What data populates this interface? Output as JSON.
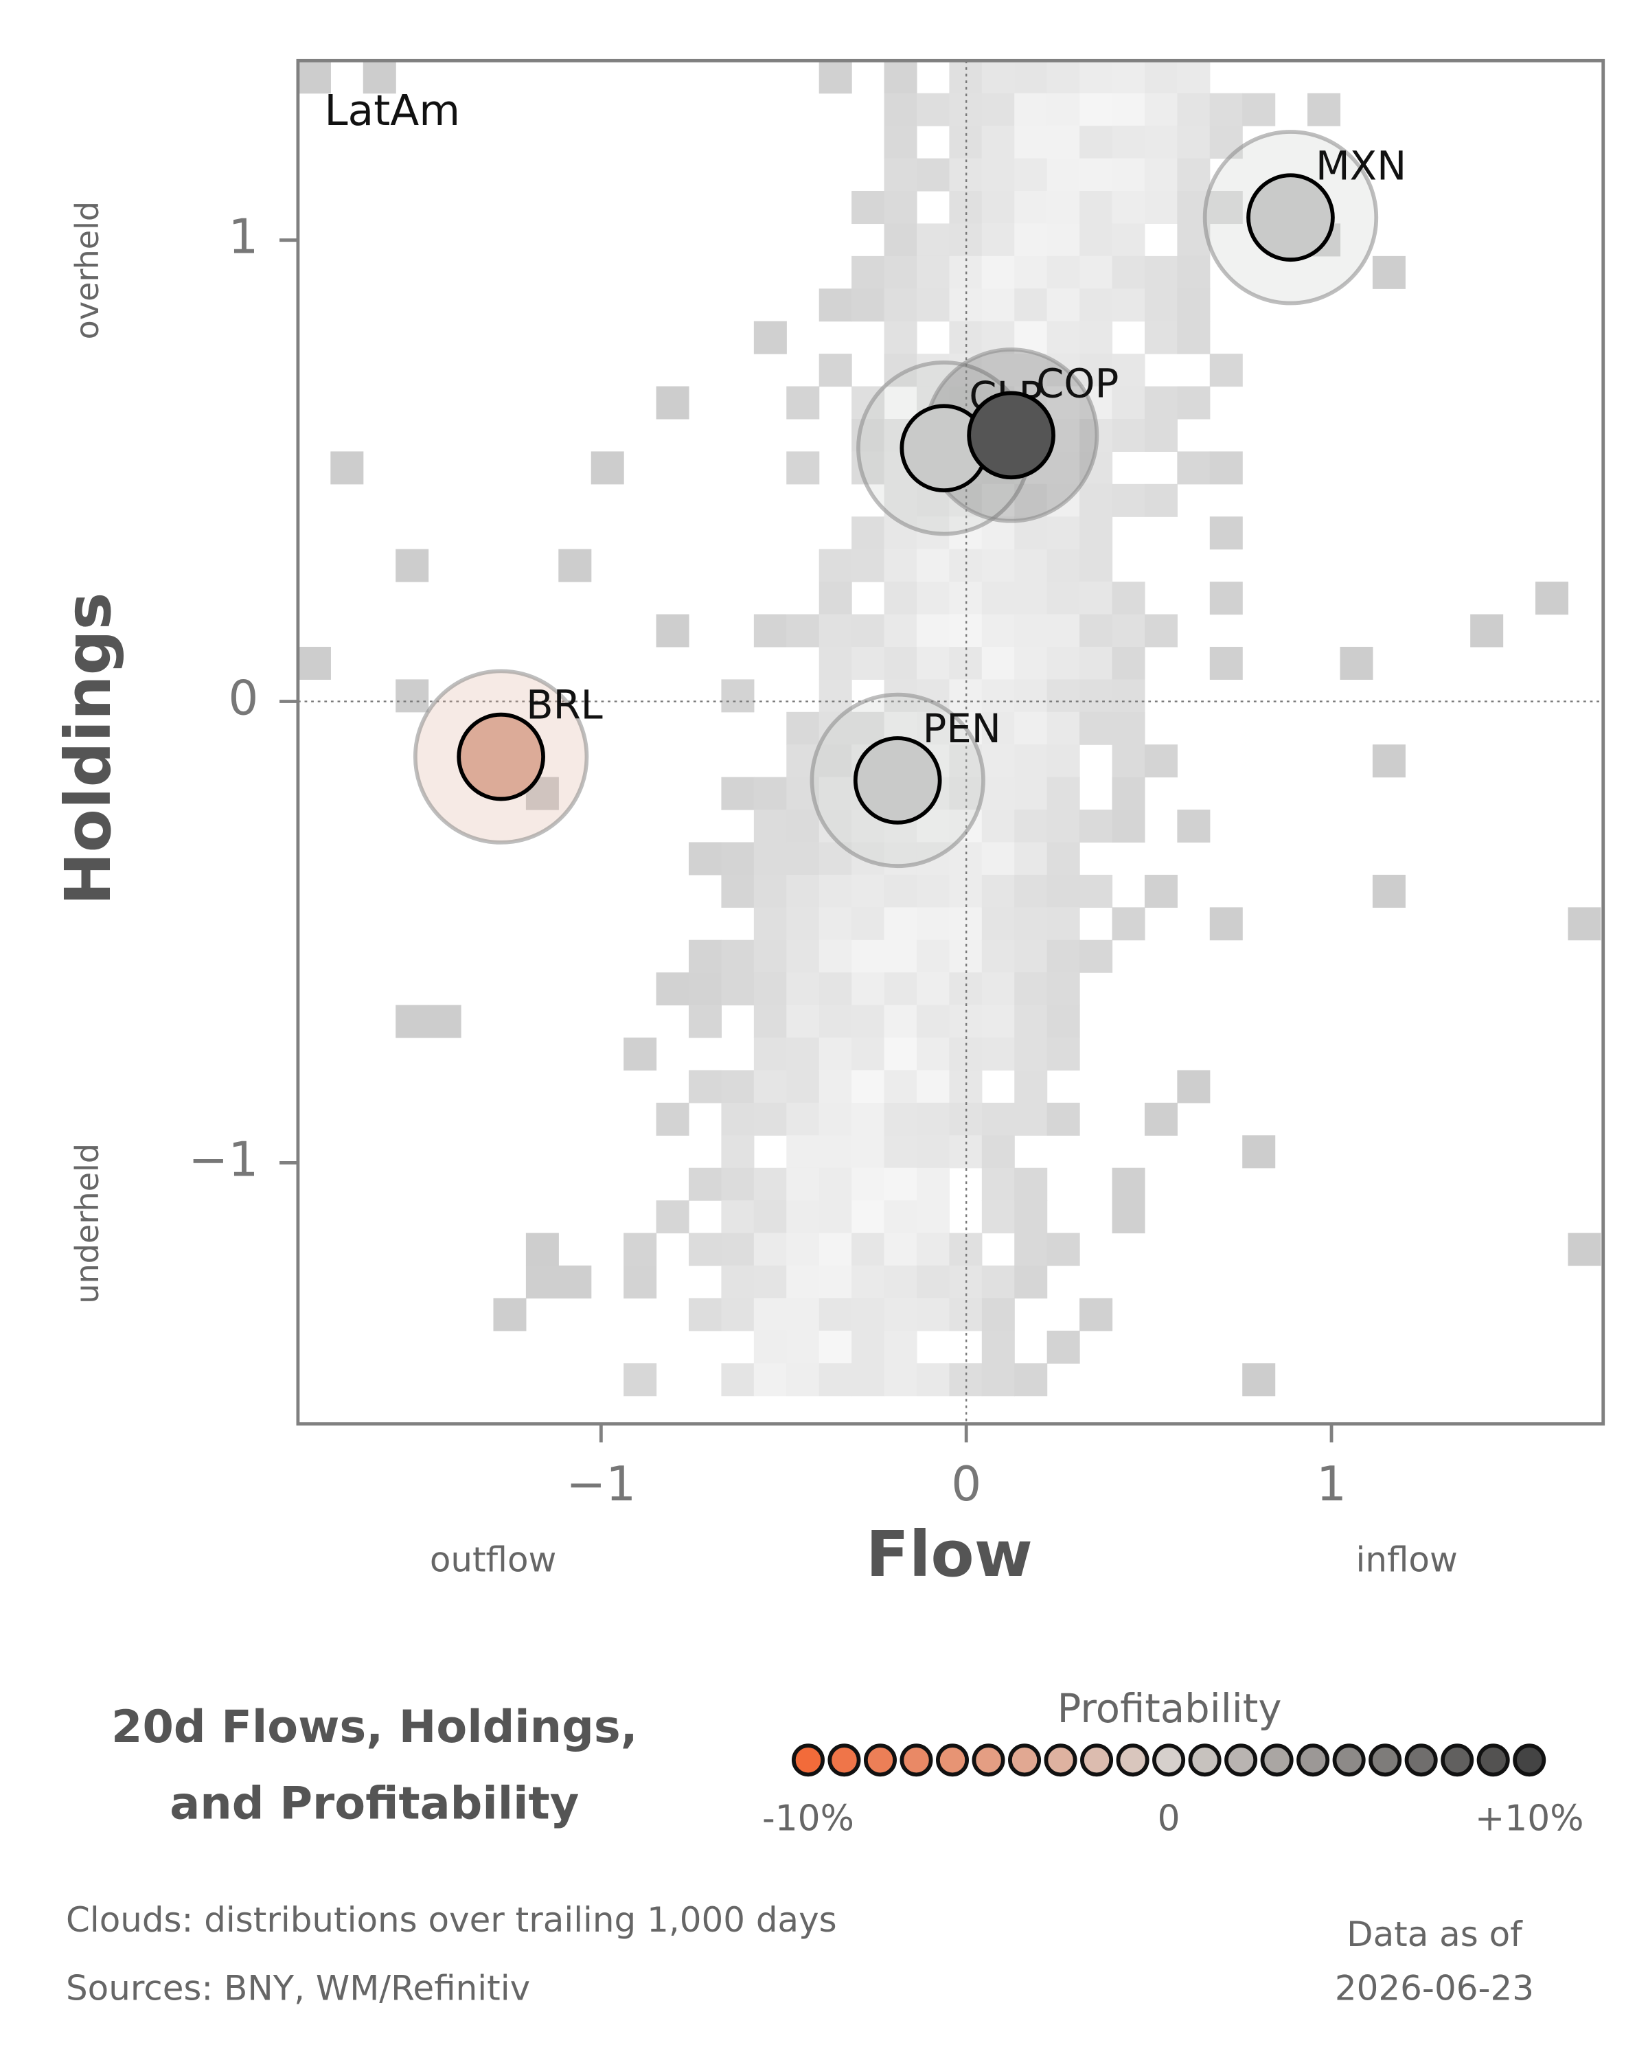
{
  "chart_data": {
    "type": "scatter",
    "panel_label": "LatAm",
    "title_lines": [
      "20d Flows, Holdings,",
      "and Profitability"
    ],
    "xlabel": "Flow",
    "ylabel": "Holdings",
    "x_low_label": "outflow",
    "x_high_label": "inflow",
    "y_high_label": "overheld",
    "y_low_label": "underheld",
    "xlim": [
      -1.83,
      1.744
    ],
    "ylim": [
      -1.566,
      1.389
    ],
    "xticks": [
      {
        "value": -1,
        "label": "−1"
      },
      0,
      1
    ],
    "yticks": [
      {
        "value": -1,
        "label": "−1"
      },
      0,
      1
    ],
    "series": [
      {
        "name": "MXN",
        "color": "#c9cac9",
        "x": [
          0.888
        ],
        "values": [
          1.049
        ]
      },
      {
        "name": "CLP",
        "color": "#c9cac9",
        "x": [
          -0.061
        ],
        "values": [
          0.549
        ]
      },
      {
        "name": "COP",
        "color": "#555555",
        "x": [
          0.123
        ],
        "values": [
          0.577
        ]
      },
      {
        "name": "BRL",
        "color": "#dcab98",
        "x": [
          -1.274
        ],
        "values": [
          -0.12
        ]
      },
      {
        "name": "PEN",
        "color": "#c9cac9",
        "x": [
          -0.188
        ],
        "values": [
          -0.171
        ]
      }
    ],
    "colorbar": {
      "title": "Profitability",
      "range": [
        -10,
        10
      ],
      "ticks": [
        {
          "value": -10,
          "label": "-10%"
        },
        0,
        {
          "value": 10,
          "label": "+10%"
        }
      ],
      "colors": [
        "#f26b3a",
        "#ef7549",
        "#ec7f57",
        "#e98966",
        "#e79474",
        "#e49e83",
        "#e1a892",
        "#deb2a0",
        "#dcbcaf",
        "#d9c6bd",
        "#d6d0cc",
        "#c7c2be",
        "#b9b4b1",
        "#aaa6a3",
        "#9c9896",
        "#8d8a88",
        "#7e7c7a",
        "#706e6d",
        "#61605f",
        "#535251",
        "#444444"
      ]
    },
    "footnotes": [
      "Clouds:  distributions over trailing 1,000 days",
      "Sources:  BNY, WM/Refinitiv"
    ],
    "asof_lines": [
      "Data as of",
      "2026-06-23"
    ]
  }
}
